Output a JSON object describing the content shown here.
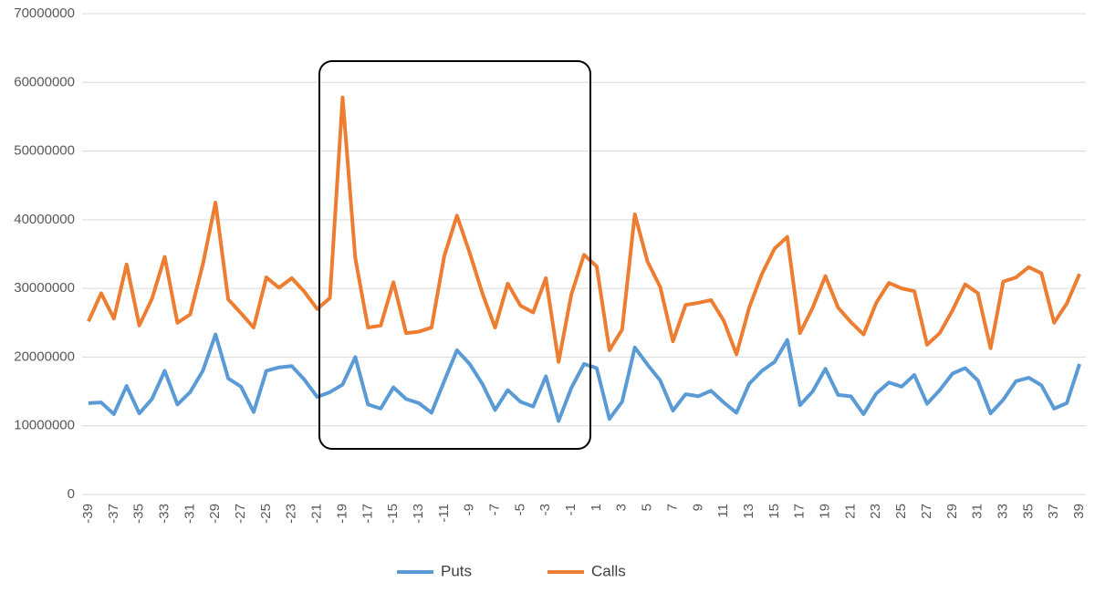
{
  "chart_data": {
    "type": "line",
    "categories": [
      "-39",
      null,
      "-37",
      null,
      "-35",
      null,
      "-33",
      null,
      "-31",
      null,
      "-29",
      null,
      "-27",
      null,
      "-25",
      null,
      "-23",
      null,
      "-21",
      null,
      "-19",
      null,
      "-17",
      null,
      "-15",
      null,
      "-13",
      null,
      "-11",
      null,
      "-9",
      null,
      "-7",
      null,
      "-5",
      null,
      "-3",
      null,
      "-1",
      null,
      "1",
      null,
      "3",
      null,
      "5",
      null,
      "7",
      null,
      "9",
      null,
      "11",
      null,
      "13",
      null,
      "15",
      null,
      "17",
      null,
      "19",
      null,
      "21",
      null,
      "23",
      null,
      "25",
      null,
      "27",
      null,
      "29",
      null,
      "31",
      null,
      "33",
      null,
      "35",
      null,
      "37",
      null,
      "39"
    ],
    "series": [
      {
        "name": "Puts",
        "color": "#5b9bd5",
        "values": [
          13300000,
          13400000,
          11700000,
          15800000,
          11800000,
          13900000,
          18000000,
          13100000,
          14900000,
          18000000,
          23300000,
          16900000,
          15700000,
          12000000,
          18000000,
          18500000,
          18700000,
          16700000,
          14200000,
          14900000,
          16000000,
          20000000,
          13100000,
          12500000,
          15600000,
          13900000,
          13300000,
          11900000,
          16500000,
          21000000,
          19000000,
          16100000,
          12300000,
          15200000,
          13500000,
          12800000,
          17200000,
          10700000,
          15500000,
          19000000,
          18400000,
          11000000,
          13500000,
          21400000,
          18900000,
          16600000,
          12200000,
          14600000,
          14300000,
          15100000,
          13400000,
          11900000,
          16100000,
          18000000,
          19300000,
          22500000,
          13000000,
          15000000,
          18300000,
          14500000,
          14300000,
          11700000,
          14700000,
          16300000,
          15700000,
          17400000,
          13200000,
          15200000,
          17600000,
          18400000,
          16600000,
          11800000,
          13800000,
          16500000,
          17000000,
          15900000,
          12500000,
          13300000,
          19000000
        ]
      },
      {
        "name": "Calls",
        "color": "#ed7d31",
        "values": [
          25200000,
          29300000,
          25600000,
          33500000,
          24600000,
          28500000,
          34600000,
          25000000,
          26200000,
          33500000,
          42500000,
          28400000,
          26400000,
          24300000,
          31600000,
          30100000,
          31500000,
          29500000,
          27000000,
          28600000,
          57800000,
          34400000,
          24300000,
          24600000,
          30900000,
          23500000,
          23700000,
          24300000,
          34700000,
          40600000,
          35200000,
          29300000,
          24300000,
          30700000,
          27500000,
          26500000,
          31500000,
          19300000,
          29100000,
          34900000,
          33200000,
          21000000,
          24000000,
          40800000,
          33900000,
          30200000,
          22300000,
          27600000,
          27900000,
          28300000,
          25300000,
          20400000,
          27200000,
          32100000,
          35800000,
          37500000,
          23500000,
          27200000,
          31800000,
          27200000,
          25100000,
          23300000,
          27900000,
          30800000,
          30000000,
          29600000,
          21800000,
          23500000,
          26800000,
          30600000,
          29300000,
          21300000,
          31000000,
          31600000,
          33100000,
          32200000,
          25000000,
          27800000,
          32100000
        ]
      }
    ],
    "ylim": [
      0,
      70000000
    ],
    "yticks": [
      0,
      10000000,
      20000000,
      30000000,
      40000000,
      50000000,
      60000000,
      70000000
    ],
    "grid": true,
    "legend": "bottom"
  }
}
